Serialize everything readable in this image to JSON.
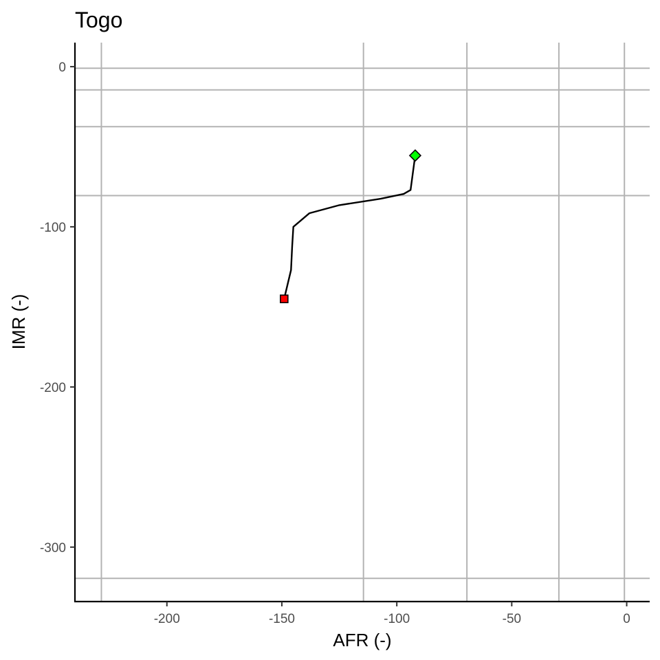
{
  "chart_data": {
    "type": "line",
    "title": "Togo",
    "xlabel": "AFR (-)",
    "ylabel": "IMR (-)",
    "xlim": [
      -240,
      10
    ],
    "ylim": [
      -334,
      15
    ],
    "x_ticks": [
      -200,
      -150,
      -100,
      -50,
      0
    ],
    "y_ticks": [
      0,
      -100,
      -200,
      -300
    ],
    "x_tick_labels": [
      "-200",
      "-150",
      "-100",
      "-50",
      "0"
    ],
    "y_tick_labels": [
      "0",
      "-100",
      "-200",
      "-300"
    ],
    "reference_lines": {
      "vertical": [
        -228.5,
        -114.5,
        -69.5,
        -29.5,
        -1
      ],
      "horizontal": [
        -1,
        -14.5,
        -37.5,
        -80.5,
        -319.5
      ],
      "color": "#b3b3b3"
    },
    "series": [
      {
        "x": [
          -149,
          -146,
          -145.5,
          -145,
          -138,
          -125,
          -107,
          -97,
          -94,
          -92.5,
          -92
        ],
        "y": [
          -145,
          -127,
          -112,
          -100,
          -91.5,
          -86.5,
          -82.5,
          -79.5,
          -77,
          -61,
          -55.5
        ],
        "color": "#000000"
      }
    ],
    "markers": [
      {
        "shape": "square",
        "x": -149,
        "y": -145,
        "fill": "#ff0000",
        "stroke": "#000000"
      },
      {
        "shape": "diamond",
        "x": -92,
        "y": -55.5,
        "fill": "#00ff00",
        "stroke": "#000000"
      }
    ],
    "grid": false,
    "legend": "none"
  }
}
